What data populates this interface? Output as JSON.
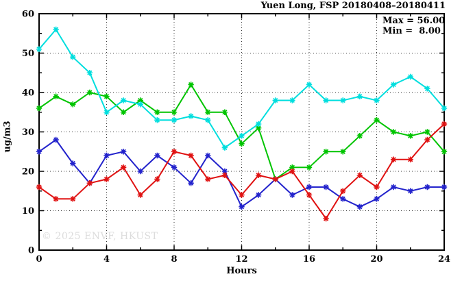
{
  "title": "Yuen Long, FSP 20180408–20180411",
  "watermark": "© 2025 ENVF, HKUST",
  "chart_data": {
    "type": "line",
    "title": "Yuen Long, FSP 20180408–20180411",
    "xlabel": "Hours",
    "ylabel": "ug/m3",
    "xlim": [
      0,
      24
    ],
    "ylim": [
      0,
      60
    ],
    "x_major_ticks": [
      0,
      4,
      8,
      12,
      16,
      20,
      24
    ],
    "x_minor_ticks": [
      2,
      6,
      10,
      14,
      18,
      22
    ],
    "y_major_ticks": [
      0,
      10,
      20,
      30,
      40,
      50,
      60
    ],
    "y_minor_ticks": [
      5,
      15,
      25,
      35,
      45,
      55
    ],
    "grid": {
      "vertical_at": [
        4,
        8,
        12,
        16,
        20
      ],
      "horizontal_at": [
        10,
        20,
        30,
        40,
        50
      ],
      "style": "dotted"
    },
    "annotations": [
      "Max = 56.00",
      "Min =  8.00"
    ],
    "annotation_values": {
      "max": 56.0,
      "min": 8.0
    },
    "x": [
      0,
      1,
      2,
      3,
      4,
      5,
      6,
      7,
      8,
      9,
      10,
      11,
      12,
      13,
      14,
      15,
      16,
      17,
      18,
      19,
      20,
      21,
      22,
      23,
      24
    ],
    "series": [
      {
        "name": "green-series",
        "color": "#00c400",
        "values": [
          36,
          39,
          37,
          40,
          39,
          35,
          38,
          35,
          35,
          42,
          35,
          35,
          27,
          31,
          18,
          21,
          21,
          25,
          25,
          29,
          33,
          30,
          29,
          30,
          25
        ]
      },
      {
        "name": "blue-series",
        "color": "#2323cc",
        "values": [
          25,
          28,
          22,
          17,
          24,
          25,
          20,
          24,
          21,
          17,
          24,
          20,
          11,
          14,
          18,
          14,
          16,
          16,
          13,
          11,
          13,
          16,
          15,
          16,
          16
        ]
      },
      {
        "name": "red-series",
        "color": "#e01212",
        "values": [
          16,
          13,
          13,
          17,
          18,
          21,
          14,
          18,
          25,
          24,
          18,
          19,
          14,
          19,
          18,
          20,
          14,
          8,
          15,
          19,
          16,
          23,
          23,
          28,
          32
        ]
      },
      {
        "name": "cyan-series",
        "color": "#00dede",
        "values": [
          51,
          56,
          49,
          45,
          35,
          38,
          37,
          33,
          33,
          34,
          33,
          26,
          29,
          32,
          38,
          38,
          42,
          38,
          38,
          39,
          38,
          42,
          44,
          41,
          36
        ]
      }
    ]
  }
}
